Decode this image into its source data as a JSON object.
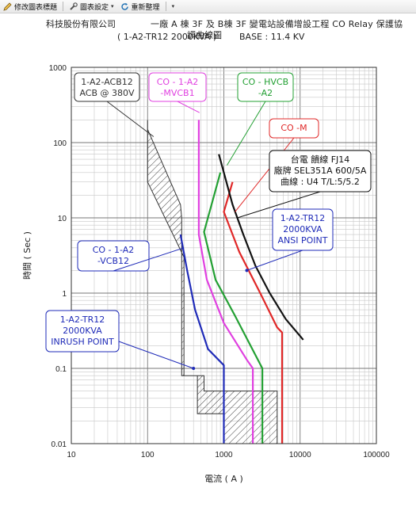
{
  "toolbar": {
    "items": [
      {
        "label": "修改圖表標題",
        "icon": "pencil-icon"
      },
      {
        "label": "圖表設定",
        "icon": "chart-settings-icon"
      },
      {
        "label": "重新整理",
        "icon": "refresh-icon"
      }
    ]
  },
  "header": {
    "company": "科技股份有限公司",
    "title": "一廠 A 棟 3F 及 B棟 3F 變電站設備增設工程 CO Relay 保護協",
    "subtitle": "( 1-A2-TR12  2000KVA )",
    "title_tail": "調曲線圖",
    "base": "BASE : 11.4 KV"
  },
  "chart_data": {
    "type": "line",
    "x_scale": "log",
    "y_scale": "log",
    "xlim": [
      10,
      100000
    ],
    "ylim": [
      0.01,
      1000
    ],
    "xlabel": "電流 ( A )",
    "ylabel": "時間 ( Sec )",
    "x_ticks": [
      "10",
      "100",
      "1000",
      "10000",
      "100000"
    ],
    "y_ticks": [
      "0.01",
      "0.1",
      "1",
      "10",
      "100",
      "1000"
    ],
    "grid": true,
    "series": [
      {
        "name": "CO - 1-A2 -VCB12",
        "color": "#1f2bb8",
        "x": [
          270,
          330,
          420,
          620,
          1000,
          1000,
          1000
        ],
        "y": [
          6,
          2,
          0.6,
          0.18,
          0.11,
          0.05,
          0.01
        ]
      },
      {
        "name": "CO - 1-A2 -MVCB1",
        "color": "#e040e0",
        "x": [
          470,
          470,
          600,
          1000,
          2000,
          2400,
          2400,
          2400
        ],
        "y": [
          200,
          6,
          1.5,
          0.4,
          0.13,
          0.1,
          0.05,
          0.01
        ]
      },
      {
        "name": "CO - HVCB -A2",
        "color": "#23a033",
        "x": [
          900,
          550,
          780,
          1400,
          2600,
          3200,
          3200
        ],
        "y": [
          40,
          6.5,
          1.5,
          0.5,
          0.15,
          0.1,
          0.01
        ]
      },
      {
        "name": "CO -M",
        "color": "#e02828",
        "x": [
          1300,
          1000,
          1600,
          3000,
          5000,
          5800,
          5800
        ],
        "y": [
          30,
          12,
          3.5,
          1,
          0.35,
          0.3,
          0.01
        ]
      },
      {
        "name": "台電 饋線 FJ14",
        "color": "#111111",
        "x": [
          860,
          1300,
          1800,
          2600,
          4000,
          6500,
          11000
        ],
        "y": [
          70,
          15,
          6,
          2.3,
          1,
          0.45,
          0.24
        ]
      }
    ],
    "hatched_regions": [
      {
        "name": "1-A2-ACB12 ACB @ 380V",
        "color": "#555555",
        "x": [
          100,
          100,
          110,
          200,
          270,
          280,
          280,
          550,
          550,
          700,
          700,
          5000,
          5000,
          1000,
          1000,
          450,
          450,
          300,
          300,
          100,
          100
        ],
        "y": [
          200,
          150,
          120,
          30,
          15,
          10,
          0.08,
          0.08,
          0.05,
          0.05,
          0.05,
          0.05,
          0.01,
          0.01,
          0.025,
          0.025,
          0.08,
          0.08,
          3,
          30,
          150
        ]
      }
    ],
    "annotations": [
      {
        "label": "1-A2-ACB12\nACB @ 380V",
        "color": "#333333",
        "x": 120,
        "y": 120
      },
      {
        "label": "CO - 1-A2\n-MVCB1",
        "color": "#e040e0",
        "x": 480,
        "y": 250
      },
      {
        "label": "CO - HVCB\n-A2",
        "color": "#23a033",
        "x": 1100,
        "y": 50
      },
      {
        "label": "CO -M",
        "color": "#e02828",
        "x": 1400,
        "y": 12
      },
      {
        "label": "台電 饋線 FJ14\n廠牌 SEL351A  600/5A\n曲線 : U4  T/L:5/5.2",
        "color": "#111111",
        "x": 1500,
        "y": 10
      },
      {
        "label": "1-A2-TR12\n2000KVA\nANSI POINT",
        "color": "#1f2bb8",
        "x": 2000,
        "y": 2
      },
      {
        "label": "CO - 1-A2\n-VCB12",
        "color": "#1f2bb8",
        "x": 300,
        "y": 4
      },
      {
        "label": "1-A2-TR12\n2000KVA\nINRUSH POINT",
        "color": "#1f2bb8",
        "x": 400,
        "y": 0.1
      }
    ],
    "points": [
      {
        "name": "1-A2-TR12 2000KVA ANSI POINT",
        "x": 2000,
        "y": 2
      },
      {
        "name": "1-A2-TR12 2000KVA INRUSH POINT",
        "x": 400,
        "y": 0.1
      }
    ]
  }
}
